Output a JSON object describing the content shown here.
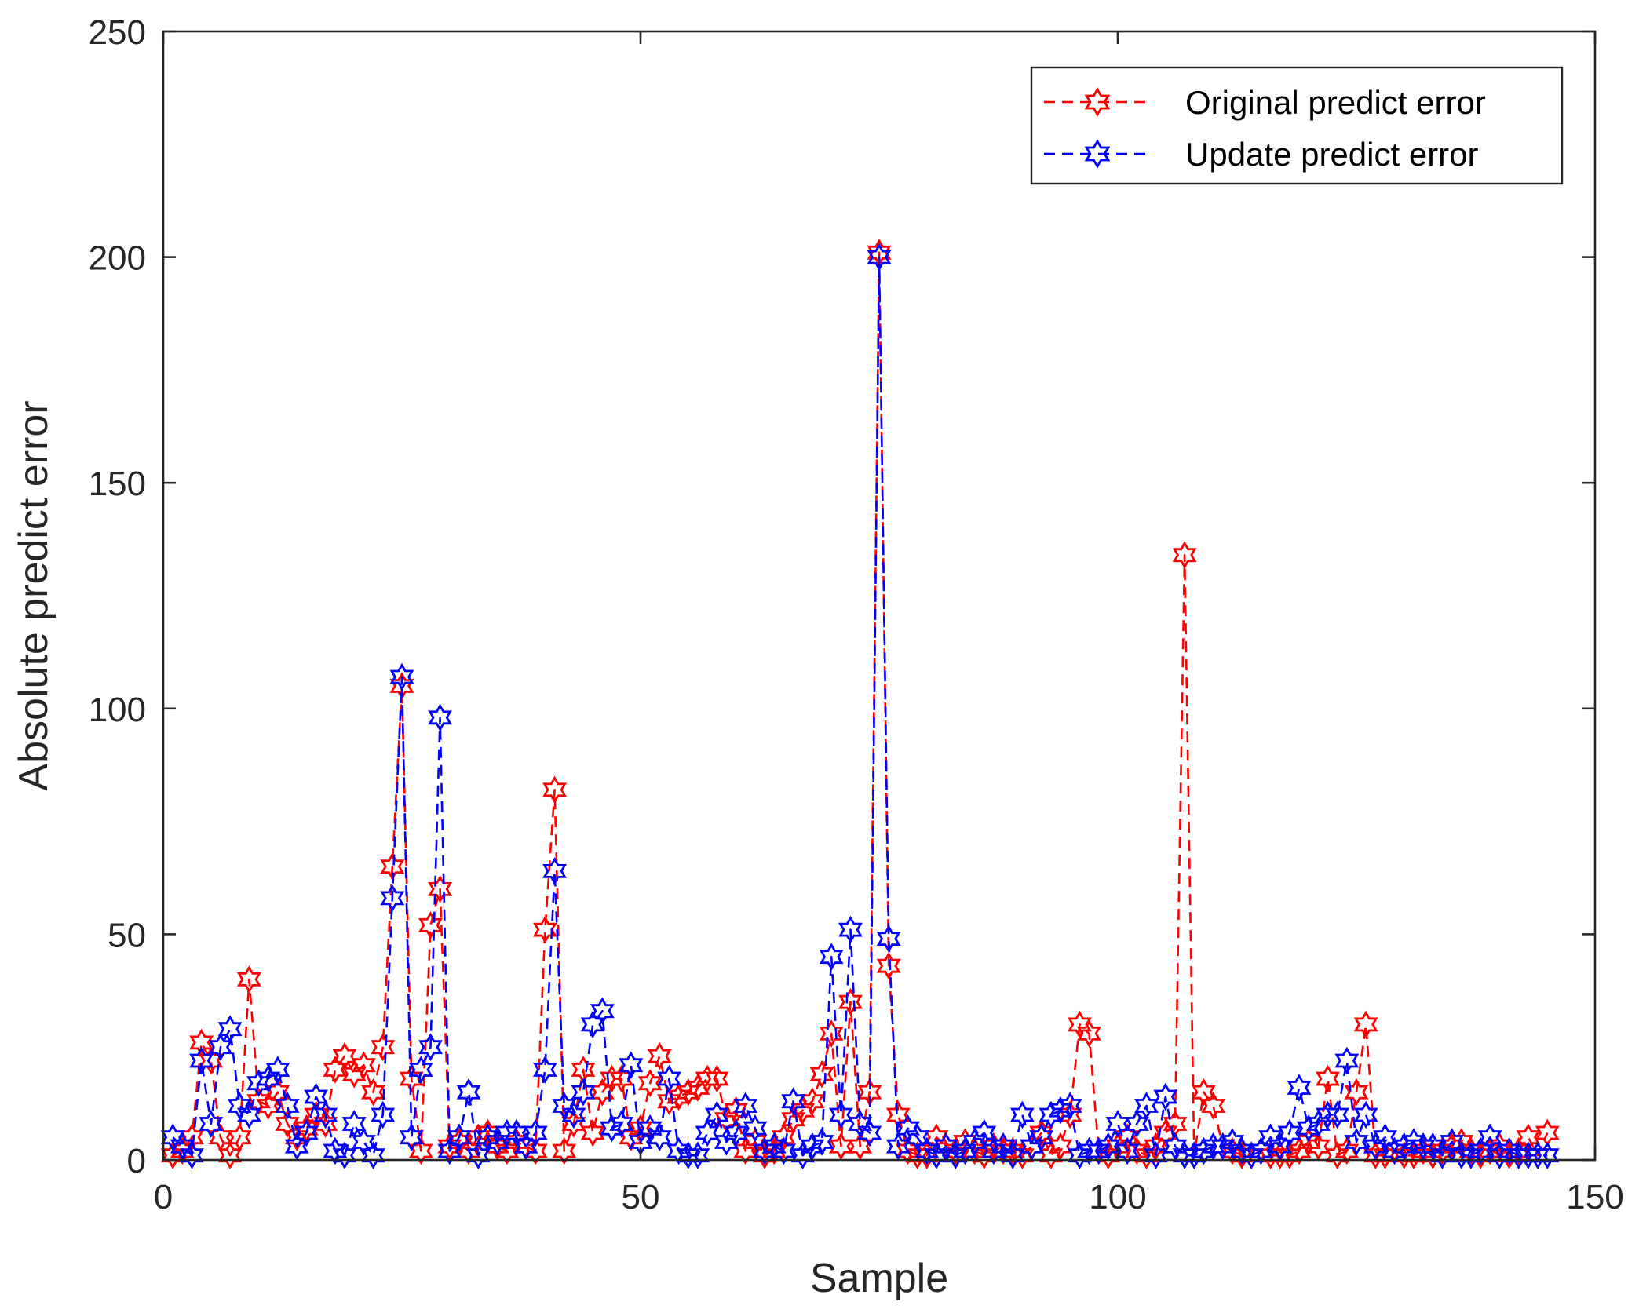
{
  "chart_data": {
    "type": "line",
    "xlabel": "Sample",
    "ylabel": "Absolute predict error",
    "xlim": [
      0,
      150
    ],
    "ylim": [
      0,
      250
    ],
    "xticks": [
      0,
      50,
      100,
      150
    ],
    "yticks": [
      0,
      50,
      100,
      150,
      200,
      250
    ],
    "xtick_labels": [
      "0",
      "50",
      "100",
      "150"
    ],
    "ytick_labels": [
      "0",
      "50",
      "100",
      "150",
      "200",
      "250"
    ],
    "legend_position": "top-right",
    "grid": false,
    "marker": "hexagram",
    "line_style": "dashed",
    "series": [
      {
        "name": "Original predict error",
        "color": "#ff0000",
        "x": [
          1,
          2,
          3,
          4,
          5,
          6,
          7,
          8,
          9,
          10,
          11,
          12,
          13,
          14,
          15,
          16,
          17,
          18,
          19,
          20,
          21,
          22,
          23,
          24,
          25,
          26,
          27,
          28,
          29,
          30,
          31,
          32,
          33,
          34,
          35,
          36,
          37,
          38,
          39,
          40,
          41,
          42,
          43,
          44,
          45,
          46,
          47,
          48,
          49,
          50,
          51,
          52,
          53,
          54,
          55,
          56,
          57,
          58,
          59,
          60,
          61,
          62,
          63,
          64,
          65,
          66,
          67,
          68,
          69,
          70,
          71,
          72,
          73,
          74,
          75,
          76,
          77,
          78,
          79,
          80,
          81,
          82,
          83,
          84,
          85,
          86,
          87,
          88,
          89,
          90,
          91,
          92,
          93,
          94,
          95,
          96,
          97,
          98,
          99,
          100,
          101,
          102,
          103,
          104,
          105,
          106,
          107,
          108,
          109,
          110,
          111,
          112,
          113,
          114,
          115,
          116,
          117,
          118,
          119,
          120,
          121,
          122,
          123,
          124,
          125,
          126,
          127,
          128,
          129,
          130,
          131,
          132,
          133,
          134,
          135,
          136,
          137,
          138,
          139,
          140,
          141,
          142,
          143,
          144,
          145
        ],
        "values": [
          1,
          2,
          5,
          26,
          22,
          5,
          1,
          5,
          40,
          13,
          12,
          15,
          8,
          5,
          7,
          10,
          8,
          20,
          23,
          19,
          21,
          15,
          25,
          65,
          105,
          18,
          2,
          52,
          60,
          3,
          4,
          2,
          5,
          6,
          3,
          2,
          4,
          3,
          2,
          51,
          82,
          2,
          8,
          20,
          6,
          15,
          18,
          18,
          5,
          7,
          17,
          23,
          13,
          14,
          15,
          16,
          18,
          18,
          9,
          11,
          2,
          4,
          1,
          2,
          5,
          9,
          11,
          13,
          19,
          28,
          3,
          35,
          3,
          15,
          201,
          43,
          10,
          2,
          1,
          1,
          5,
          3,
          2,
          4,
          2,
          1,
          3,
          2,
          2,
          1,
          3,
          6,
          1,
          3,
          10,
          30,
          28,
          2,
          1,
          3,
          5,
          2,
          1,
          3,
          6,
          8,
          134,
          1,
          15,
          12,
          3,
          2,
          1,
          1,
          2,
          1,
          1,
          1,
          2,
          4,
          3,
          18,
          1,
          2,
          15,
          30,
          1,
          1,
          2,
          1,
          1,
          2,
          1,
          2,
          3,
          4,
          2,
          1,
          2,
          3,
          1,
          2,
          5,
          1,
          6
        ]
      },
      {
        "name": "Update predict error",
        "color": "#0000ff",
        "x": [
          1,
          2,
          3,
          4,
          5,
          6,
          7,
          8,
          9,
          10,
          11,
          12,
          13,
          14,
          15,
          16,
          17,
          18,
          19,
          20,
          21,
          22,
          23,
          24,
          25,
          26,
          27,
          28,
          29,
          30,
          31,
          32,
          33,
          34,
          35,
          36,
          37,
          38,
          39,
          40,
          41,
          42,
          43,
          44,
          45,
          46,
          47,
          48,
          49,
          50,
          51,
          52,
          53,
          54,
          55,
          56,
          57,
          58,
          59,
          60,
          61,
          62,
          63,
          64,
          65,
          66,
          67,
          68,
          69,
          70,
          71,
          72,
          73,
          74,
          75,
          76,
          77,
          78,
          79,
          80,
          81,
          82,
          83,
          84,
          85,
          86,
          87,
          88,
          89,
          90,
          91,
          92,
          93,
          94,
          95,
          96,
          97,
          98,
          99,
          100,
          101,
          102,
          103,
          104,
          105,
          106,
          107,
          108,
          109,
          110,
          111,
          112,
          113,
          114,
          115,
          116,
          117,
          118,
          119,
          120,
          121,
          122,
          123,
          124,
          125,
          126,
          127,
          128,
          129,
          130,
          131,
          132,
          133,
          134,
          135,
          136,
          137,
          138,
          139,
          140,
          141,
          142,
          143,
          144,
          145
        ],
        "values": [
          5,
          3,
          1,
          22,
          8,
          25,
          29,
          12,
          10,
          17,
          18,
          20,
          12,
          3,
          6,
          14,
          10,
          2,
          1,
          8,
          4,
          1,
          10,
          58,
          107,
          5,
          20,
          25,
          98,
          2,
          5,
          15,
          1,
          5,
          4,
          6,
          6,
          3,
          6,
          20,
          64,
          12,
          10,
          15,
          30,
          33,
          7,
          8,
          21,
          4,
          7,
          5,
          18,
          2,
          1,
          1,
          6,
          10,
          4,
          6,
          12,
          7,
          2,
          3,
          2,
          13,
          1,
          3,
          4,
          45,
          10,
          51,
          8,
          6,
          200,
          49,
          3,
          7,
          5,
          2,
          1,
          3,
          1,
          2,
          4,
          6,
          2,
          3,
          1,
          10,
          3,
          5,
          10,
          11,
          12,
          1,
          2,
          2,
          3,
          8,
          2,
          8,
          12,
          1,
          14,
          3,
          1,
          1,
          2,
          3,
          3,
          4,
          2,
          1,
          2,
          5,
          3,
          6,
          16,
          7,
          8,
          10,
          10,
          22,
          4,
          10,
          3,
          5,
          2,
          3,
          4,
          3,
          3,
          1,
          4,
          1,
          1,
          2,
          5,
          1,
          2,
          1,
          1,
          1,
          1
        ]
      }
    ]
  }
}
